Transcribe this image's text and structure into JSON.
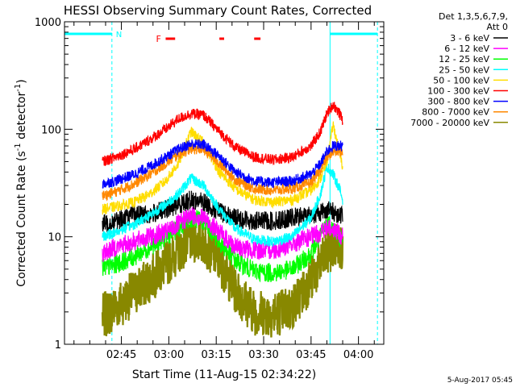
{
  "chart_data": {
    "type": "line",
    "title": "HESSI Observing Summary Count Rates, Corrected",
    "xlabel": "Start Time (11-Aug-15 02:34:22)",
    "ylabel": "Corrected Count Rate (s",
    "ylabel_sup": "-1",
    "ylabel_tail": " detector",
    "ylabel_close": ")",
    "y_scale": "log",
    "xlim": [
      -52,
      49
    ],
    "ylim": [
      1,
      1000
    ],
    "x_ticks": [
      {
        "t": -34,
        "label": "02:45"
      },
      {
        "t": -19,
        "label": "03:00"
      },
      {
        "t": -4,
        "label": "03:15"
      },
      {
        "t": 11,
        "label": "03:30"
      },
      {
        "t": 26,
        "label": "03:45"
      },
      {
        "t": 41,
        "label": "04:00"
      }
    ],
    "y_ticks": [
      {
        "v": 1,
        "label": "1"
      },
      {
        "v": 10,
        "label": "10"
      },
      {
        "v": 100,
        "label": "100"
      },
      {
        "v": 1000,
        "label": "1000"
      }
    ],
    "legend_header": [
      "Det 1,3,5,6,7,9,",
      "Att 0"
    ],
    "legend_position": "right, outside plot",
    "markers": {
      "night_label": "N",
      "night_solid": [
        [
          -52,
          -37
        ],
        [
          32,
          47
        ]
      ],
      "night_dashed": [
        -37,
        47
      ],
      "saa_lines": [
        32
      ],
      "flare_label": "F",
      "flare_bars": [
        [
          -20,
          -17
        ],
        [
          -3,
          -1.5
        ],
        [
          8,
          10
        ]
      ],
      "flare_color": "#ff0000",
      "night_color": "#00ffff"
    },
    "series": [
      {
        "name": "3 - 6 keV",
        "color": "#000000",
        "start": -40,
        "end": 36,
        "x": [
          -40,
          -36,
          -30,
          -25,
          -20,
          -16,
          -12,
          -8,
          -3,
          2,
          8,
          14,
          20,
          26,
          29,
          31,
          33,
          35,
          36
        ],
        "y": [
          13,
          14,
          16,
          16,
          18,
          20,
          22,
          21,
          17,
          15,
          14,
          14,
          15,
          16,
          17,
          18,
          17,
          16,
          16
        ]
      },
      {
        "name": "6 - 12 keV",
        "color": "#ff00ff",
        "start": -40,
        "end": 36,
        "x": [
          -40,
          -36,
          -30,
          -25,
          -20,
          -16,
          -12,
          -8,
          -3,
          2,
          8,
          14,
          20,
          26,
          29,
          31,
          33,
          35,
          36
        ],
        "y": [
          7,
          8,
          9,
          10,
          11,
          13,
          16,
          15,
          11,
          8,
          7.5,
          7.5,
          8.5,
          10,
          11,
          12,
          12,
          10.5,
          10
        ]
      },
      {
        "name": "12 - 25 keV",
        "color": "#00ff00",
        "start": -40,
        "end": 36,
        "x": [
          -40,
          -36,
          -30,
          -25,
          -20,
          -16,
          -12,
          -8,
          -3,
          2,
          8,
          14,
          20,
          26,
          29,
          31,
          33,
          35,
          36
        ],
        "y": [
          5,
          5.5,
          6.5,
          8,
          10,
          12,
          15,
          14,
          9,
          6,
          4.8,
          4.6,
          5,
          7,
          10,
          14,
          12,
          10,
          9
        ]
      },
      {
        "name": "25 - 50 keV",
        "color": "#00ffff",
        "start": -40,
        "end": 36,
        "x": [
          -40,
          -36,
          -30,
          -25,
          -20,
          -16,
          -12,
          -8,
          -3,
          2,
          8,
          14,
          20,
          26,
          29,
          31,
          33,
          35,
          36
        ],
        "y": [
          10,
          11,
          13,
          16,
          20,
          25,
          35,
          30,
          18,
          12,
          9.5,
          9,
          10,
          15,
          25,
          45,
          38,
          28,
          22
        ]
      },
      {
        "name": "50 - 100 keV",
        "color": "#ffdd00",
        "start": -40,
        "end": 36,
        "x": [
          -40,
          -36,
          -30,
          -25,
          -20,
          -16,
          -12,
          -8,
          -3,
          2,
          8,
          14,
          20,
          26,
          29,
          31,
          33,
          35,
          36
        ],
        "y": [
          18,
          19,
          21,
          25,
          33,
          48,
          95,
          75,
          40,
          28,
          22,
          21,
          22,
          27,
          35,
          50,
          110,
          60,
          45
        ]
      },
      {
        "name": "100 - 300 keV",
        "color": "#ff0000",
        "start": -40,
        "end": 36,
        "x": [
          -40,
          -36,
          -30,
          -25,
          -20,
          -16,
          -12,
          -8,
          -3,
          2,
          8,
          14,
          20,
          26,
          29,
          31,
          33,
          35,
          36
        ],
        "y": [
          50,
          55,
          65,
          80,
          100,
          125,
          140,
          135,
          95,
          68,
          55,
          52,
          55,
          70,
          95,
          140,
          170,
          140,
          120
        ]
      },
      {
        "name": "300 - 800 keV",
        "color": "#0000ff",
        "start": -40,
        "end": 36,
        "x": [
          -40,
          -36,
          -30,
          -25,
          -20,
          -16,
          -12,
          -8,
          -3,
          2,
          8,
          14,
          20,
          26,
          29,
          31,
          33,
          35,
          36
        ],
        "y": [
          31,
          33,
          38,
          45,
          55,
          65,
          73,
          72,
          56,
          40,
          33,
          32,
          33,
          38,
          48,
          62,
          70,
          70,
          70
        ]
      },
      {
        "name": "800 - 7000 keV",
        "color": "#ff8800",
        "start": -40,
        "end": 36,
        "x": [
          -40,
          -36,
          -30,
          -25,
          -20,
          -16,
          -12,
          -8,
          -3,
          2,
          8,
          14,
          20,
          26,
          29,
          31,
          33,
          35,
          36
        ],
        "y": [
          24,
          26,
          31,
          38,
          48,
          58,
          66,
          65,
          48,
          34,
          28,
          27,
          28,
          32,
          42,
          55,
          62,
          62,
          62
        ]
      },
      {
        "name": "7000 - 20000 keV",
        "color": "#888800",
        "start": -40,
        "end": 36,
        "x": [
          -40,
          -36,
          -30,
          -25,
          -20,
          -16,
          -12,
          -8,
          -3,
          2,
          8,
          14,
          20,
          26,
          29,
          31,
          33,
          35,
          36
        ],
        "y": [
          1.8,
          2.2,
          3,
          4,
          5.5,
          7.5,
          9.5,
          9,
          6,
          3.2,
          2,
          1.9,
          2.2,
          4,
          5.5,
          7,
          8,
          8.5,
          8
        ]
      }
    ]
  },
  "footer_timestamp": "5-Aug-2017 05:45"
}
